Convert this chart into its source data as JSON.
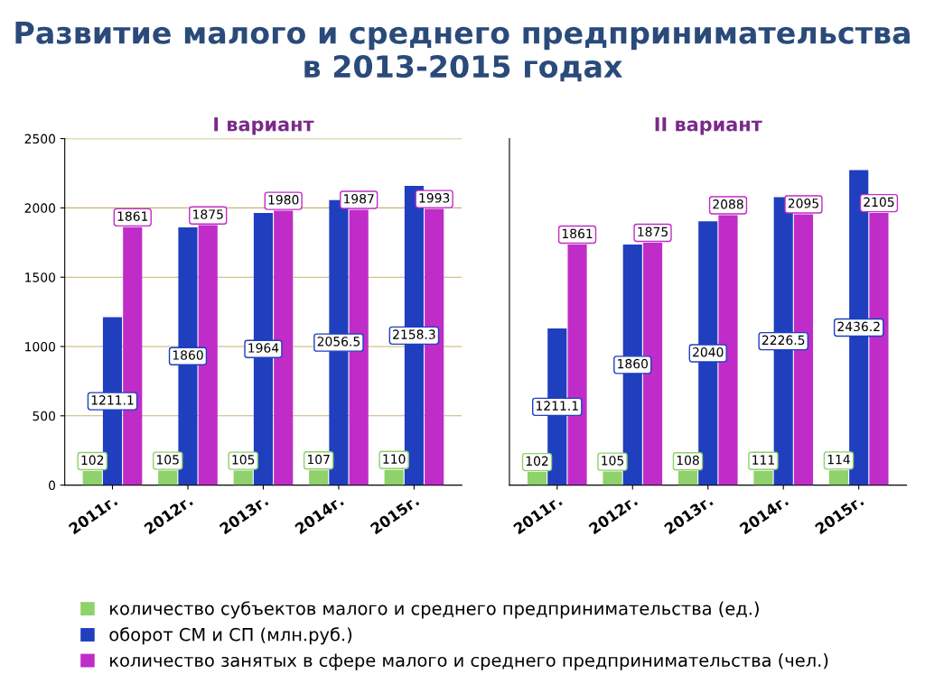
{
  "chart_data": [
    {
      "type": "bar",
      "title": "Развитие малого и среднего предпринимательства в 2013-2015 годах",
      "subtitle": "I вариант",
      "categories": [
        "2011г.",
        "2012г.",
        "2013г.",
        "2014г.",
        "2015г."
      ],
      "series": [
        {
          "name": "количество субъектов малого и среднего предпринимательства (ед.)",
          "color": "#8fd16a",
          "values": [
            102,
            105,
            105,
            107,
            110
          ]
        },
        {
          "name": "оборот СМ и СП (млн.руб.)",
          "color": "#1f3fbf",
          "values": [
            1211.1,
            1860,
            1964,
            2056.5,
            2158.3
          ]
        },
        {
          "name": "количество занятых в сфере малого и среднего предпринимательства (чел.)",
          "color": "#c02cc8",
          "values": [
            1861,
            1875,
            1980,
            1987,
            1993
          ]
        }
      ],
      "ylim": [
        0,
        2500
      ],
      "yticks": [
        0,
        500,
        1000,
        1500,
        2000,
        2500
      ],
      "grid": "y",
      "data_labels": true,
      "legend": "bottom"
    },
    {
      "type": "bar",
      "subtitle": "II вариант",
      "categories": [
        "2011г.",
        "2012г.",
        "2013г.",
        "2014г.",
        "2015г."
      ],
      "series": [
        {
          "color": "#8fd16a",
          "values": [
            102,
            105,
            108,
            111,
            114
          ]
        },
        {
          "color": "#1f3fbf",
          "values": [
            1211.1,
            1860,
            2040,
            2226.5,
            2436.2
          ]
        },
        {
          "color": "#c02cc8",
          "values": [
            1861,
            1875,
            2088,
            2095,
            2105
          ]
        }
      ],
      "data_labels": true,
      "tick_labels": "x"
    }
  ]
}
